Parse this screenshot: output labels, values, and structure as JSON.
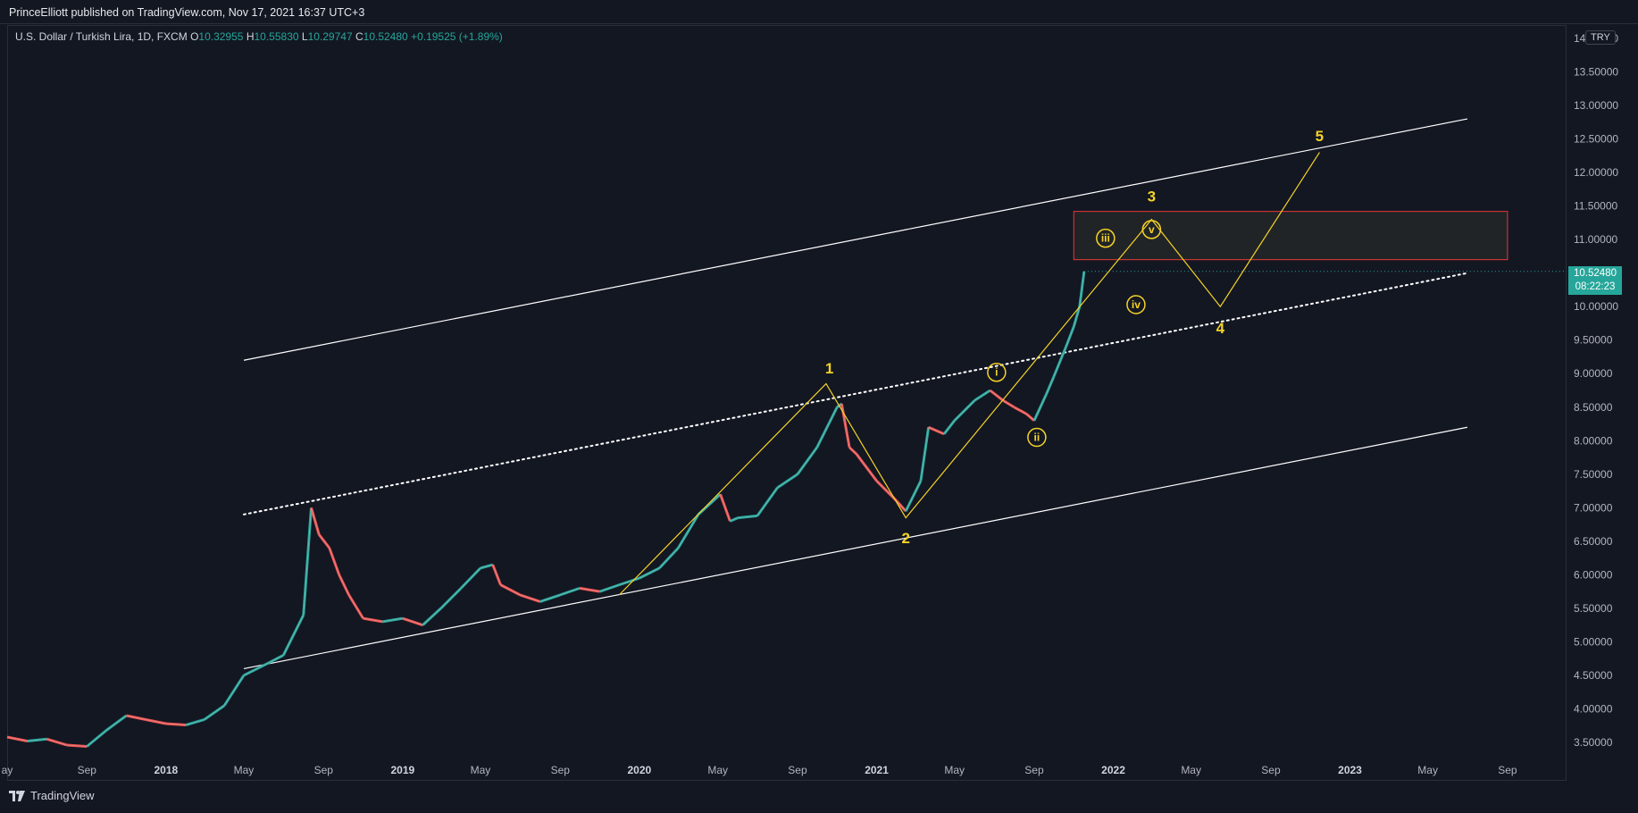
{
  "header": {
    "publisher": "PrinceElliott published on TradingView.com, Nov 17, 2021 16:37 UTC+3"
  },
  "legend": {
    "symbol": "U.S. Dollar / Turkish Lira, 1D, FXCM",
    "o_label": "O",
    "o": "10.32955",
    "h_label": "H",
    "h": "10.55830",
    "l_label": "L",
    "l": "10.29747",
    "c_label": "C",
    "c": "10.52480",
    "change": "+0.19525 (+1.89%)"
  },
  "price_scale": {
    "currency": "TRY",
    "last_price": "10.52480",
    "countdown": "08:22:23"
  },
  "footer": {
    "brand": "TradingView"
  },
  "colors": {
    "background": "#131722",
    "up": "#26a69a",
    "down": "#ef5350",
    "wave": "#f5d327",
    "channel": "#ffffff",
    "target_box": "#e53935"
  },
  "chart_data": {
    "type": "line",
    "title": "U.S. Dollar / Turkish Lira, 1D, FXCM",
    "xlabel": "",
    "ylabel": "",
    "ylim": [
      3.3,
      14.2
    ],
    "xlim": [
      "2017-05-01",
      "2023-12-01"
    ],
    "y_ticks": [
      "14.00000",
      "13.50000",
      "13.00000",
      "12.50000",
      "12.00000",
      "11.50000",
      "11.00000",
      "10.50000",
      "10.00000",
      "9.50000",
      "9.00000",
      "8.50000",
      "8.00000",
      "7.50000",
      "7.00000",
      "6.50000",
      "6.00000",
      "5.50000",
      "5.00000",
      "4.50000",
      "4.00000",
      "3.50000"
    ],
    "x_ticks": [
      {
        "label": "ay",
        "date": "2017-05-01"
      },
      {
        "label": "Sep",
        "date": "2017-09-01"
      },
      {
        "label": "2018",
        "date": "2018-01-01",
        "year": true
      },
      {
        "label": "May",
        "date": "2018-05-01"
      },
      {
        "label": "Sep",
        "date": "2018-09-01"
      },
      {
        "label": "2019",
        "date": "2019-01-01",
        "year": true
      },
      {
        "label": "May",
        "date": "2019-05-01"
      },
      {
        "label": "Sep",
        "date": "2019-09-01"
      },
      {
        "label": "2020",
        "date": "2020-01-01",
        "year": true
      },
      {
        "label": "May",
        "date": "2020-05-01"
      },
      {
        "label": "Sep",
        "date": "2020-09-01"
      },
      {
        "label": "2021",
        "date": "2021-01-01",
        "year": true
      },
      {
        "label": "May",
        "date": "2021-05-01"
      },
      {
        "label": "Sep",
        "date": "2021-09-01"
      },
      {
        "label": "2022",
        "date": "2022-01-01",
        "year": true
      },
      {
        "label": "May",
        "date": "2022-05-01"
      },
      {
        "label": "Sep",
        "date": "2022-09-01"
      },
      {
        "label": "2023",
        "date": "2023-01-01",
        "year": true
      },
      {
        "label": "May",
        "date": "2023-05-01"
      },
      {
        "label": "Sep",
        "date": "2023-09-01"
      }
    ],
    "series": [
      {
        "points": [
          [
            "2017-05-01",
            3.58
          ],
          [
            "2017-06-01",
            3.52
          ],
          [
            "2017-07-01",
            3.55
          ],
          [
            "2017-08-01",
            3.46
          ],
          [
            "2017-09-01",
            3.44
          ],
          [
            "2017-10-01",
            3.68
          ],
          [
            "2017-11-01",
            3.9
          ],
          [
            "2017-12-01",
            3.84
          ],
          [
            "2018-01-01",
            3.78
          ],
          [
            "2018-02-01",
            3.76
          ],
          [
            "2018-03-01",
            3.84
          ],
          [
            "2018-04-01",
            4.05
          ],
          [
            "2018-05-01",
            4.5
          ],
          [
            "2018-06-01",
            4.65
          ],
          [
            "2018-07-01",
            4.8
          ],
          [
            "2018-08-01",
            5.4
          ],
          [
            "2018-08-13",
            7.0
          ],
          [
            "2018-08-25",
            6.6
          ],
          [
            "2018-09-10",
            6.4
          ],
          [
            "2018-09-25",
            6.0
          ],
          [
            "2018-10-10",
            5.7
          ],
          [
            "2018-11-01",
            5.35
          ],
          [
            "2018-12-01",
            5.3
          ],
          [
            "2019-01-01",
            5.35
          ],
          [
            "2019-02-01",
            5.25
          ],
          [
            "2019-03-01",
            5.5
          ],
          [
            "2019-04-01",
            5.8
          ],
          [
            "2019-05-01",
            6.1
          ],
          [
            "2019-05-20",
            6.15
          ],
          [
            "2019-06-01",
            5.85
          ],
          [
            "2019-07-01",
            5.7
          ],
          [
            "2019-08-01",
            5.6
          ],
          [
            "2019-09-01",
            5.7
          ],
          [
            "2019-10-01",
            5.8
          ],
          [
            "2019-11-01",
            5.75
          ],
          [
            "2019-12-01",
            5.85
          ],
          [
            "2020-01-01",
            5.95
          ],
          [
            "2020-02-01",
            6.1
          ],
          [
            "2020-03-01",
            6.4
          ],
          [
            "2020-04-01",
            6.9
          ],
          [
            "2020-05-05",
            7.2
          ],
          [
            "2020-05-20",
            6.8
          ],
          [
            "2020-06-01",
            6.85
          ],
          [
            "2020-07-01",
            6.88
          ],
          [
            "2020-08-01",
            7.3
          ],
          [
            "2020-09-01",
            7.5
          ],
          [
            "2020-10-01",
            7.9
          ],
          [
            "2020-11-01",
            8.5
          ],
          [
            "2020-11-08",
            8.55
          ],
          [
            "2020-11-20",
            7.9
          ],
          [
            "2020-12-01",
            7.8
          ],
          [
            "2021-01-01",
            7.4
          ],
          [
            "2021-02-01",
            7.1
          ],
          [
            "2021-02-15",
            6.95
          ],
          [
            "2021-03-10",
            7.4
          ],
          [
            "2021-03-22",
            8.2
          ],
          [
            "2021-04-15",
            8.1
          ],
          [
            "2021-05-01",
            8.3
          ],
          [
            "2021-06-01",
            8.6
          ],
          [
            "2021-06-25",
            8.75
          ],
          [
            "2021-07-15",
            8.6
          ],
          [
            "2021-08-01",
            8.5
          ],
          [
            "2021-08-20",
            8.4
          ],
          [
            "2021-09-01",
            8.3
          ],
          [
            "2021-09-20",
            8.7
          ],
          [
            "2021-10-01",
            8.95
          ],
          [
            "2021-10-20",
            9.4
          ],
          [
            "2021-11-01",
            9.7
          ],
          [
            "2021-11-10",
            10.0
          ],
          [
            "2021-11-17",
            10.5248
          ]
        ]
      }
    ],
    "channel_lines": [
      {
        "name": "upper",
        "start": [
          "2018-05-01",
          9.2
        ],
        "end": [
          "2023-07-01",
          12.8
        ],
        "style": "solid"
      },
      {
        "name": "middle",
        "start": [
          "2018-05-01",
          6.9
        ],
        "end": [
          "2023-07-01",
          10.5
        ],
        "style": "dotted"
      },
      {
        "name": "lower",
        "start": [
          "2018-05-01",
          4.6
        ],
        "end": [
          "2023-07-01",
          8.2
        ],
        "style": "solid"
      }
    ],
    "wave_path": [
      [
        "2019-12-01",
        5.7
      ],
      [
        "2020-10-15",
        8.85
      ],
      [
        "2021-02-15",
        6.85
      ],
      [
        "2022-03-01",
        11.3
      ],
      [
        "2022-06-15",
        10.0
      ],
      [
        "2022-11-15",
        12.3
      ]
    ],
    "target_zone": {
      "start": "2021-11-01",
      "end": "2023-09-01",
      "low": 10.7,
      "high": 11.42
    },
    "annotations": [
      {
        "text": "1",
        "date": "2020-10-20",
        "price": 9.08,
        "circled": false,
        "size": "big"
      },
      {
        "text": "2",
        "date": "2021-02-15",
        "price": 6.55,
        "circled": false,
        "size": "big"
      },
      {
        "text": "3",
        "date": "2022-03-01",
        "price": 11.65,
        "circled": false,
        "size": "big"
      },
      {
        "text": "4",
        "date": "2022-06-15",
        "price": 9.68,
        "circled": false,
        "size": "big"
      },
      {
        "text": "5",
        "date": "2022-11-15",
        "price": 12.55,
        "circled": false,
        "size": "big"
      },
      {
        "text": "i",
        "date": "2021-07-05",
        "price": 9.02,
        "circled": true,
        "size": "small"
      },
      {
        "text": "ii",
        "date": "2021-09-05",
        "price": 8.05,
        "circled": true,
        "size": "small"
      },
      {
        "text": "iii",
        "date": "2021-12-20",
        "price": 11.02,
        "circled": true,
        "size": "small"
      },
      {
        "text": "iv",
        "date": "2022-02-05",
        "price": 10.03,
        "circled": true,
        "size": "small"
      },
      {
        "text": "v",
        "date": "2022-03-01",
        "price": 11.15,
        "circled": true,
        "size": "small"
      }
    ]
  }
}
